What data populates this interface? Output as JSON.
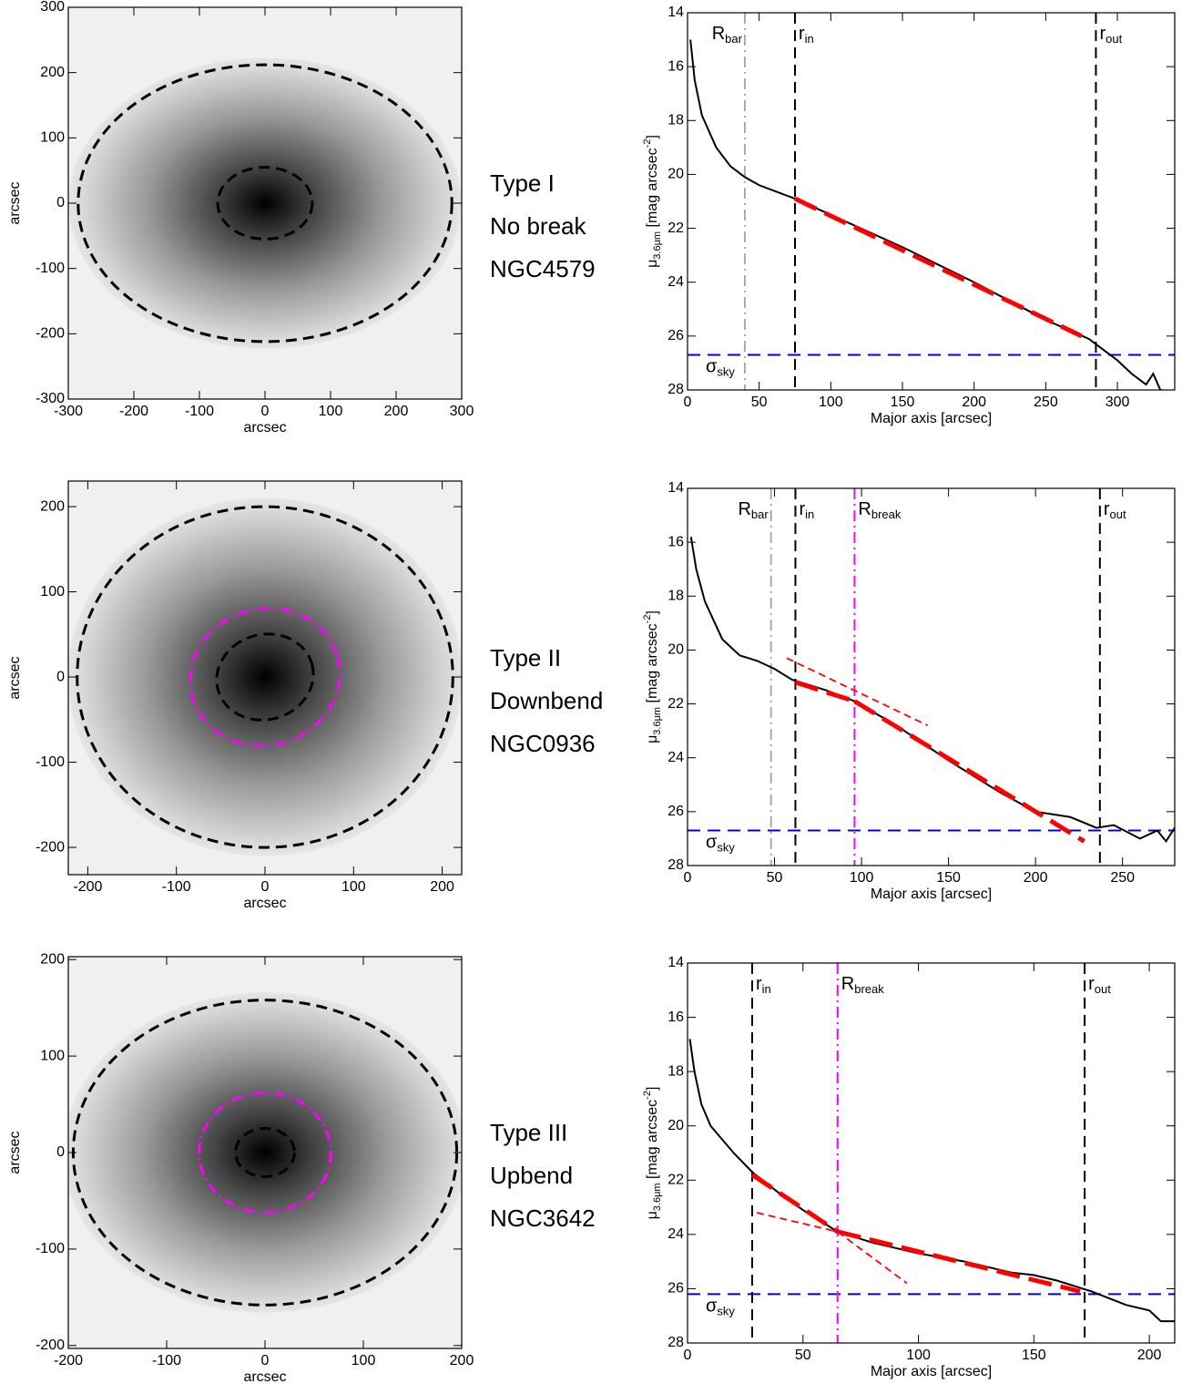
{
  "chart_data": [
    {
      "type": "image",
      "xlabel": "arcsec",
      "ylabel": "arcsec",
      "xlim": [
        -300,
        300
      ],
      "ylim": [
        -300,
        300
      ],
      "xticks": [
        -300,
        -200,
        -100,
        0,
        100,
        200,
        300
      ],
      "yticks": [
        -300,
        -200,
        -100,
        0,
        100,
        200,
        300
      ],
      "ellipses": [
        {
          "a": 285,
          "b": 212,
          "angle": 0,
          "color": "#000000",
          "style": "dash"
        },
        {
          "a": 72,
          "b": 55,
          "angle": 0,
          "color": "#000000",
          "style": "dash"
        }
      ]
    },
    {
      "type": "line",
      "xlabel": "Major axis [arcsec]",
      "ylabel": {
        "symbol": "μ",
        "sub": "3.6μm",
        "text": " [mag arcsec",
        "sup": "-2",
        "end": "]"
      },
      "xlim": [
        0,
        340
      ],
      "ylim": [
        28,
        14
      ],
      "xticks": [
        0,
        50,
        100,
        150,
        200,
        250,
        300
      ],
      "yticks": [
        14,
        16,
        18,
        20,
        22,
        24,
        26,
        28
      ],
      "color": "#000000",
      "x": [
        2,
        5,
        10,
        20,
        30,
        40,
        50,
        75,
        100,
        150,
        200,
        250,
        280,
        290,
        300,
        310,
        320,
        325,
        330,
        340
      ],
      "values": [
        15,
        16.5,
        17.8,
        19,
        19.7,
        20.1,
        20.4,
        20.9,
        21.5,
        22.7,
        24,
        25.4,
        26.1,
        26.5,
        26.9,
        27.4,
        27.8,
        27.4,
        28,
        28.1
      ],
      "fits": [
        {
          "x": [
            75,
            275
          ],
          "y": [
            20.9,
            26
          ],
          "color": "#ff0000",
          "width": "thick"
        }
      ],
      "vlines": [
        {
          "x": 40,
          "label": {
            "main": "R",
            "sub": "bar"
          },
          "color": "#aaaaaa",
          "style": "dashdot",
          "label_side": "left"
        },
        {
          "x": 75,
          "label": {
            "main": "r",
            "sub": "in"
          },
          "color": "#000000",
          "style": "dash",
          "label_side": "right"
        },
        {
          "x": 285,
          "label": {
            "main": "r",
            "sub": "out"
          },
          "color": "#000000",
          "style": "dash",
          "label_side": "right"
        }
      ],
      "sky": {
        "y": 26.7,
        "label": {
          "main": "σ",
          "sub": "sky"
        },
        "color": "#0000dd"
      }
    },
    {
      "type": "image",
      "xlabel": "arcsec",
      "ylabel": "arcsec",
      "xlim": [
        -222,
        222
      ],
      "ylim": [
        -232,
        230
      ],
      "xticks": [
        -200,
        -100,
        0,
        100,
        200
      ],
      "yticks": [
        -200,
        -100,
        0,
        100,
        200
      ],
      "ellipses": [
        {
          "a": 212,
          "b": 200,
          "angle": 0,
          "color": "#000000",
          "style": "dash"
        },
        {
          "a": 85,
          "b": 80,
          "angle": 15,
          "color": "#ff00ff",
          "style": "dashdot"
        },
        {
          "a": 55,
          "b": 50,
          "angle": 15,
          "color": "#000000",
          "style": "dash"
        }
      ]
    },
    {
      "type": "line",
      "xlabel": "Major axis [arcsec]",
      "ylabel": {
        "symbol": "μ",
        "sub": "3.6μm",
        "text": " [mag arcsec",
        "sup": "-2",
        "end": "]"
      },
      "xlim": [
        0,
        280
      ],
      "ylim": [
        28,
        14
      ],
      "xticks": [
        0,
        50,
        100,
        150,
        200,
        250
      ],
      "yticks": [
        14,
        16,
        18,
        20,
        22,
        24,
        26,
        28
      ],
      "color": "#000000",
      "x": [
        2,
        5,
        10,
        20,
        30,
        40,
        50,
        60,
        80,
        96,
        120,
        150,
        180,
        200,
        220,
        235,
        245,
        260,
        270,
        275,
        280
      ],
      "values": [
        15.8,
        17,
        18.2,
        19.6,
        20.2,
        20.4,
        20.7,
        21.1,
        21.5,
        21.9,
        22.8,
        24.1,
        25.3,
        26,
        26.2,
        26.6,
        26.5,
        27,
        26.7,
        27.1,
        26.6
      ],
      "fits": [
        {
          "x": [
            57,
            138
          ],
          "y": [
            20.3,
            22.8
          ],
          "color": "#ff0000",
          "width": "thin"
        },
        {
          "x": [
            62,
            96
          ],
          "y": [
            21.2,
            21.9
          ],
          "color": "#ff0000",
          "width": "thick"
        },
        {
          "x": [
            96,
            228
          ],
          "y": [
            21.9,
            27.1
          ],
          "color": "#ff0000",
          "width": "thick"
        }
      ],
      "vlines": [
        {
          "x": 48,
          "label": {
            "main": "R",
            "sub": "bar"
          },
          "color": "#aaaaaa",
          "style": "dashdot",
          "label_side": "left"
        },
        {
          "x": 62,
          "label": {
            "main": "r",
            "sub": "in"
          },
          "color": "#000000",
          "style": "dash",
          "label_side": "right"
        },
        {
          "x": 96,
          "label": {
            "main": "R",
            "sub": "break"
          },
          "color": "#ff00ff",
          "style": "dashdot",
          "label_side": "right"
        },
        {
          "x": 237,
          "label": {
            "main": "r",
            "sub": "out"
          },
          "color": "#000000",
          "style": "dash",
          "label_side": "right"
        }
      ],
      "sky": {
        "y": 26.7,
        "label": {
          "main": "σ",
          "sub": "sky"
        },
        "color": "#0000dd"
      }
    },
    {
      "type": "image",
      "xlabel": "arcsec",
      "ylabel": "arcsec",
      "xlim": [
        -200,
        200
      ],
      "ylim": [
        -203,
        203
      ],
      "xticks": [
        -200,
        -100,
        0,
        100,
        200
      ],
      "yticks": [
        -200,
        -100,
        0,
        100,
        200
      ],
      "ellipses": [
        {
          "a": 195,
          "b": 158,
          "angle": 0,
          "color": "#000000",
          "style": "dash"
        },
        {
          "a": 67,
          "b": 62,
          "angle": 0,
          "color": "#ff00ff",
          "style": "dashdot"
        },
        {
          "a": 30,
          "b": 25,
          "angle": 0,
          "color": "#000000",
          "style": "dash"
        }
      ]
    },
    {
      "type": "line",
      "xlabel": "Major axis [arcsec]",
      "ylabel": {
        "symbol": "μ",
        "sub": "3.6μm",
        "text": " [mag arcsec",
        "sup": "-2",
        "end": "]"
      },
      "xlim": [
        0,
        211
      ],
      "ylim": [
        28,
        14
      ],
      "xticks": [
        0,
        50,
        100,
        150,
        200
      ],
      "yticks": [
        14,
        16,
        18,
        20,
        22,
        24,
        26,
        28
      ],
      "color": "#000000",
      "x": [
        1,
        3,
        6,
        10,
        20,
        28,
        40,
        50,
        65,
        80,
        100,
        120,
        140,
        150,
        160,
        175,
        190,
        200,
        205,
        211
      ],
      "values": [
        16.8,
        18,
        19.2,
        20,
        21,
        21.7,
        22.5,
        23.1,
        23.9,
        24.3,
        24.7,
        25,
        25.4,
        25.5,
        25.7,
        26.1,
        26.6,
        26.8,
        27.2,
        27.2
      ],
      "fits": [
        {
          "x": [
            65,
            95
          ],
          "y": [
            23.9,
            25.8
          ],
          "color": "#ff0000",
          "width": "thin"
        },
        {
          "x": [
            30,
            65
          ],
          "y": [
            23.2,
            23.9
          ],
          "color": "#ff0000",
          "width": "thin"
        },
        {
          "x": [
            28,
            65
          ],
          "y": [
            21.8,
            23.9
          ],
          "color": "#ff0000",
          "width": "thick"
        },
        {
          "x": [
            65,
            170
          ],
          "y": [
            23.9,
            26.1
          ],
          "color": "#ff0000",
          "width": "thick"
        }
      ],
      "vlines": [
        {
          "x": 28,
          "label": {
            "main": "r",
            "sub": "in"
          },
          "color": "#000000",
          "style": "dash",
          "label_side": "right"
        },
        {
          "x": 65,
          "label": {
            "main": "R",
            "sub": "break"
          },
          "color": "#ff00ff",
          "style": "dashdot",
          "label_side": "right"
        },
        {
          "x": 172,
          "label": {
            "main": "r",
            "sub": "out"
          },
          "color": "#000000",
          "style": "dash",
          "label_side": "right"
        }
      ],
      "sky": {
        "y": 26.2,
        "label": {
          "main": "σ",
          "sub": "sky"
        },
        "color": "#0000dd"
      }
    }
  ],
  "labels": [
    {
      "lines": [
        "Type I",
        "No break",
        "NGC4579"
      ]
    },
    {
      "lines": [
        "Type II",
        "Downbend",
        "NGC0936"
      ]
    },
    {
      "lines": [
        "Type III",
        "Upbend",
        "NGC3642"
      ]
    }
  ]
}
